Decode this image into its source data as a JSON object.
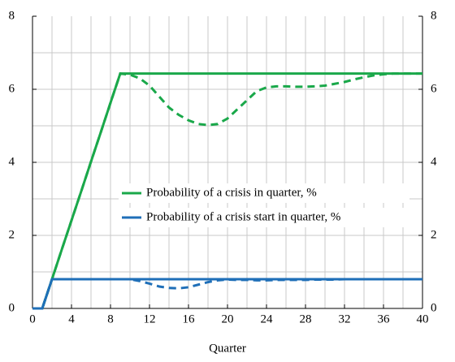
{
  "chart_data": {
    "type": "line",
    "x_label": "Quarter",
    "x": [
      0,
      1,
      2,
      3,
      4,
      5,
      6,
      7,
      8,
      9,
      10,
      11,
      12,
      13,
      14,
      15,
      16,
      17,
      18,
      19,
      20,
      21,
      22,
      23,
      24,
      25,
      26,
      27,
      28,
      29,
      30,
      31,
      32,
      33,
      34,
      35,
      36,
      37,
      38,
      39,
      40
    ],
    "series": [
      {
        "name": "Probability of a crisis in quarter, %",
        "color": "#1aa84a",
        "dashed": false,
        "values": [
          0,
          0,
          0.8,
          1.61,
          2.41,
          3.21,
          4.02,
          4.82,
          5.63,
          6.43,
          6.43,
          6.43,
          6.43,
          6.43,
          6.43,
          6.43,
          6.43,
          6.43,
          6.43,
          6.43,
          6.43,
          6.43,
          6.43,
          6.43,
          6.43,
          6.43,
          6.43,
          6.43,
          6.43,
          6.43,
          6.43,
          6.43,
          6.43,
          6.43,
          6.43,
          6.43,
          6.43,
          6.43,
          6.43,
          6.43,
          6.43
        ]
      },
      {
        "name": "Probability of a crisis start in quarter, %",
        "color": "#1f6fb8",
        "dashed": false,
        "values": [
          0,
          0,
          0.8,
          0.8,
          0.8,
          0.8,
          0.8,
          0.8,
          0.8,
          0.8,
          0.8,
          0.8,
          0.8,
          0.8,
          0.8,
          0.8,
          0.8,
          0.8,
          0.8,
          0.8,
          0.8,
          0.8,
          0.8,
          0.8,
          0.8,
          0.8,
          0.8,
          0.8,
          0.8,
          0.8,
          0.8,
          0.8,
          0.8,
          0.8,
          0.8,
          0.8,
          0.8,
          0.8,
          0.8,
          0.8,
          0.8
        ]
      },
      {
        "color": "#1aa84a",
        "dashed": true,
        "values": [
          0,
          0,
          0.8,
          1.61,
          2.41,
          3.21,
          4.02,
          4.82,
          5.63,
          6.43,
          6.4,
          6.3,
          6.1,
          5.8,
          5.5,
          5.3,
          5.15,
          5.05,
          5.02,
          5.05,
          5.2,
          5.45,
          5.7,
          5.95,
          6.05,
          6.08,
          6.08,
          6.07,
          6.07,
          6.08,
          6.1,
          6.15,
          6.2,
          6.27,
          6.33,
          6.38,
          6.41,
          6.43,
          6.43,
          6.43,
          6.43
        ]
      },
      {
        "color": "#1f6fb8",
        "dashed": true,
        "values": [
          0,
          0,
          0.8,
          0.8,
          0.8,
          0.8,
          0.8,
          0.8,
          0.8,
          0.8,
          0.8,
          0.75,
          0.68,
          0.6,
          0.56,
          0.55,
          0.58,
          0.65,
          0.72,
          0.77,
          0.79,
          0.78,
          0.78,
          0.77,
          0.77,
          0.78,
          0.78,
          0.78,
          0.78,
          0.79,
          0.79,
          0.79,
          0.8,
          0.8,
          0.8,
          0.8,
          0.8,
          0.8,
          0.8,
          0.8,
          0.8
        ]
      }
    ],
    "xlim": [
      0,
      40
    ],
    "xticks": [
      0,
      4,
      8,
      12,
      16,
      20,
      24,
      28,
      32,
      36,
      40
    ],
    "ylim": [
      0,
      8
    ],
    "yticks": [
      0,
      2,
      4,
      6,
      8
    ],
    "y2lim": [
      0,
      8
    ],
    "y2ticks": [
      0,
      2,
      4,
      6,
      8
    ],
    "x_gridlines": [
      2,
      4,
      6,
      8,
      10,
      12,
      14,
      16,
      18,
      20,
      22,
      24,
      26,
      28,
      30,
      32,
      34,
      36,
      38
    ],
    "y_gridlines": [
      1,
      2,
      3,
      4,
      5,
      6,
      7
    ],
    "grid": true
  }
}
